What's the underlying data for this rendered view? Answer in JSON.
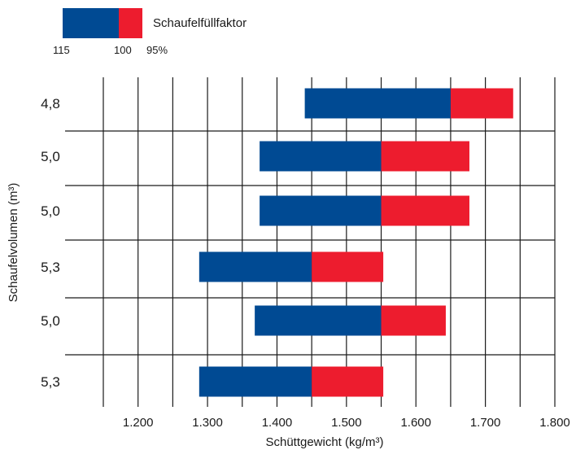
{
  "chart_data": {
    "type": "bar",
    "orientation": "horizontal",
    "stacked": true,
    "categories": [
      "4,8",
      "5,0",
      "5,0",
      "5,3",
      "5,0",
      "5,3"
    ],
    "series": [
      {
        "name": "115",
        "color": "#004a93",
        "ranges": [
          [
            1440,
            1650
          ],
          [
            1375,
            1550
          ],
          [
            1375,
            1550
          ],
          [
            1288,
            1450
          ],
          [
            1368,
            1550
          ],
          [
            1288,
            1450
          ]
        ]
      },
      {
        "name": "95%",
        "color": "#ed1c2e",
        "ranges": [
          [
            1650,
            1740
          ],
          [
            1550,
            1677
          ],
          [
            1550,
            1677
          ],
          [
            1450,
            1553
          ],
          [
            1550,
            1643
          ],
          [
            1450,
            1553
          ]
        ]
      }
    ],
    "xticks": [
      "1.200",
      "1.300",
      "1.400",
      "1.500",
      "1.600",
      "1.700",
      "1.800"
    ],
    "xtick_values": [
      1200,
      1300,
      1400,
      1500,
      1600,
      1700,
      1800
    ],
    "xlim": [
      1150,
      1800
    ],
    "xlabel": "Schüttgewicht (kg/m³)",
    "ylabel": "Schaufelvolumen (m³)",
    "legend": {
      "title": "Schaufelfüllfaktor",
      "labels": [
        "115",
        "100",
        "95%"
      ],
      "placement": "top-left"
    },
    "grid": true
  }
}
